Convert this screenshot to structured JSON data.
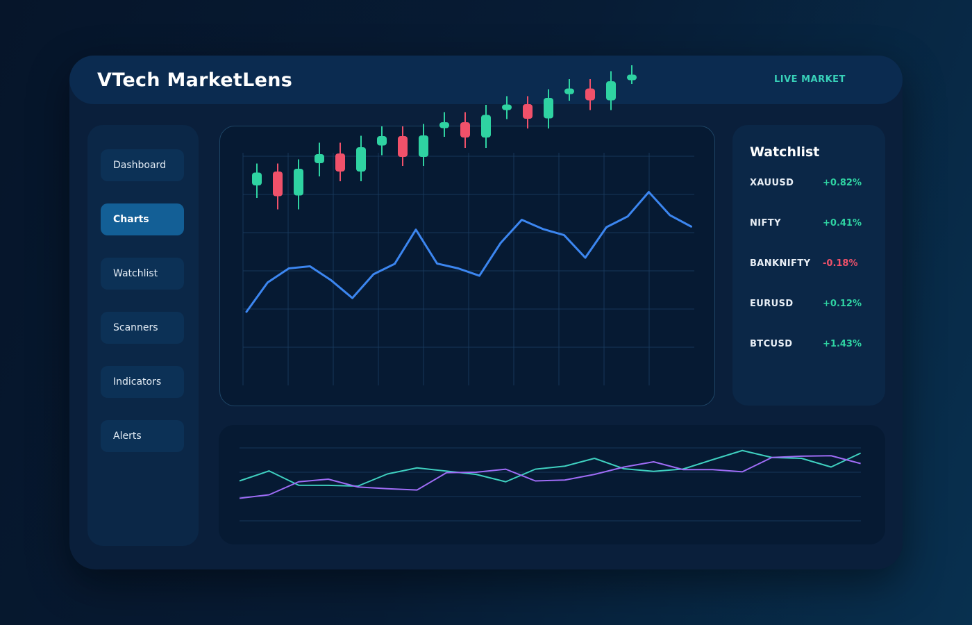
{
  "app": {
    "title": "VTech MarketLens",
    "status_label": "LIVE MARKET"
  },
  "sidebar": {
    "items": [
      {
        "label": "Dashboard",
        "active": false
      },
      {
        "label": "Charts",
        "active": true
      },
      {
        "label": "Watchlist",
        "active": false
      },
      {
        "label": "Scanners",
        "active": false
      },
      {
        "label": "Indicators",
        "active": false
      },
      {
        "label": "Alerts",
        "active": false
      }
    ]
  },
  "watchlist": {
    "title": "Watchlist",
    "items": [
      {
        "symbol": "XAUUSD",
        "change": "+0.82%",
        "direction": "up"
      },
      {
        "symbol": "NIFTY",
        "change": "+0.41%",
        "direction": "up"
      },
      {
        "symbol": "BANKNIFTY",
        "change": "-0.18%",
        "direction": "down"
      },
      {
        "symbol": "EURUSD",
        "change": "+0.12%",
        "direction": "up"
      },
      {
        "symbol": "BTCUSD",
        "change": "+1.43%",
        "direction": "up"
      }
    ]
  },
  "colors": {
    "up": "#2fd3a2",
    "down": "#f0516a",
    "main_line": "#3c86f0",
    "series_teal": "#3fd0c0",
    "series_purple": "#9f6cf6",
    "live_label": "#38d1b9"
  },
  "chart_data": [
    {
      "type": "candlestick",
      "candles": [
        {
          "open": 90.6,
          "close": 94.3,
          "high": 96.9,
          "low": 87.0
        },
        {
          "open": 94.6,
          "close": 87.5,
          "high": 96.9,
          "low": 83.7
        },
        {
          "open": 87.7,
          "close": 95.4,
          "high": 98.1,
          "low": 83.7
        },
        {
          "open": 97.0,
          "close": 99.6,
          "high": 102.9,
          "low": 93.2
        },
        {
          "open": 99.8,
          "close": 94.6,
          "high": 102.9,
          "low": 91.8
        },
        {
          "open": 94.6,
          "close": 101.6,
          "high": 104.9,
          "low": 91.8
        },
        {
          "open": 102.1,
          "close": 104.8,
          "high": 107.6,
          "low": 99.3
        },
        {
          "open": 104.8,
          "close": 98.8,
          "high": 107.6,
          "low": 96.2
        },
        {
          "open": 98.8,
          "close": 105.0,
          "high": 108.3,
          "low": 96.2
        },
        {
          "open": 107.1,
          "close": 108.8,
          "high": 111.7,
          "low": 104.6
        },
        {
          "open": 108.8,
          "close": 104.4,
          "high": 111.7,
          "low": 101.4
        },
        {
          "open": 104.4,
          "close": 110.9,
          "high": 113.8,
          "low": 101.4
        },
        {
          "open": 112.5,
          "close": 113.9,
          "high": 116.3,
          "low": 109.7
        },
        {
          "open": 114.0,
          "close": 109.8,
          "high": 116.3,
          "low": 107.0
        },
        {
          "open": 109.9,
          "close": 115.8,
          "high": 118.3,
          "low": 107.0
        },
        {
          "open": 117.0,
          "close": 118.5,
          "high": 121.2,
          "low": 115.0
        },
        {
          "open": 118.5,
          "close": 115.1,
          "high": 121.2,
          "low": 112.3
        },
        {
          "open": 115.1,
          "close": 120.6,
          "high": 123.5,
          "low": 112.3
        },
        {
          "open": 121.9,
          "close": 122.5,
          "high": 125.2,
          "low": 119.8
        }
      ]
    },
    {
      "type": "line",
      "values": [
        35.0,
        44.6,
        49.2,
        49.9,
        45.3,
        39.5,
        47.3,
        50.7,
        61.9,
        50.8,
        49.2,
        46.8,
        57.5,
        65.1,
        62.1,
        60.1,
        52.7,
        62.7,
        66.2,
        74.2,
        66.6,
        62.9
      ]
    },
    {
      "type": "line",
      "series": [
        {
          "values": [
            30.0,
            41.5,
            25.0,
            24.9,
            24.0,
            38.0,
            45.0,
            41.3,
            37.5,
            29.0,
            43.5,
            47.0,
            56.0,
            44.0,
            41.0,
            43.7,
            54.5,
            65.0,
            57.0,
            56.0,
            46.0,
            62.0
          ]
        },
        {
          "values": [
            10.0,
            14.0,
            29.0,
            32.0,
            23.0,
            21.0,
            19.5,
            39.5,
            40.0,
            43.5,
            30.0,
            31.0,
            37.5,
            46.0,
            52.0,
            43.0,
            43.0,
            40.5,
            57.0,
            58.5,
            59.0,
            50.0
          ]
        }
      ]
    }
  ]
}
